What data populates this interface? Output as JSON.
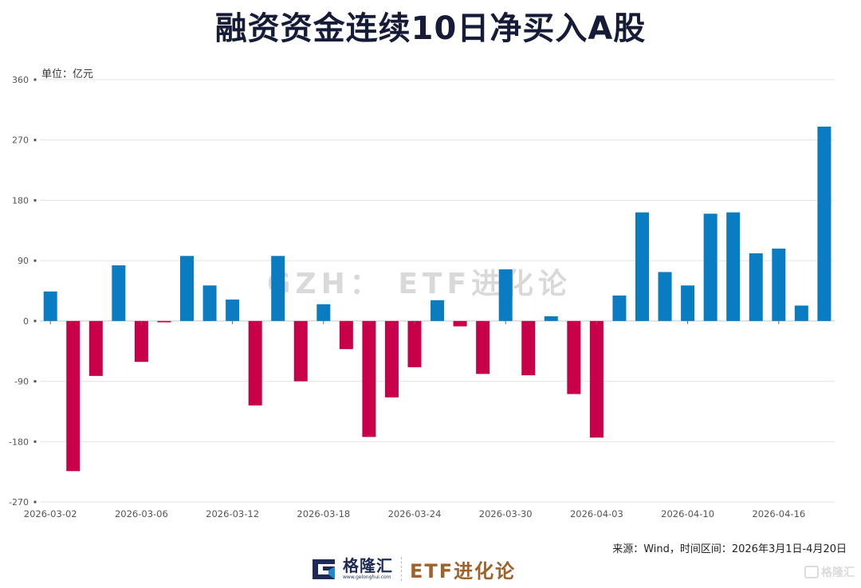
{
  "title": "融资资金连续10日净买入A股",
  "watermark": "GZH： ETF进化论",
  "source": "来源：Wind，时间区间：2026年3月1日-4月20日",
  "footer": {
    "brand_name": "格隆汇",
    "brand_url": "www.gelonghui.com",
    "channel": "ETF进化论",
    "corner_brand": "格隆汇"
  },
  "colors": {
    "positive": "#0A7CC2",
    "negative": "#C8004A",
    "grid": "#e3e3e3",
    "title": "#161b38",
    "channel": "#a0622b"
  },
  "chart_data": {
    "type": "bar",
    "title": "融资资金连续10日净买入A股",
    "unit_label": "单位：亿元",
    "xlabel": "",
    "ylabel": "",
    "ylim": [
      -270,
      360
    ],
    "yticks": [
      360,
      270,
      180,
      90,
      0,
      -90,
      -180,
      -270
    ],
    "grid": true,
    "legend": "none",
    "x_tick_labels": [
      "2026-03-02",
      "2026-03-06",
      "2026-03-12",
      "2026-03-18",
      "2026-03-24",
      "2026-03-30",
      "2026-04-03",
      "2026-04-10",
      "2026-04-16"
    ],
    "categories": [
      "2026-03-02",
      "2026-03-03",
      "2026-03-04",
      "2026-03-05",
      "2026-03-06",
      "2026-03-09",
      "2026-03-10",
      "2026-03-11",
      "2026-03-12",
      "2026-03-13",
      "2026-03-16",
      "2026-03-17",
      "2026-03-18",
      "2026-03-19",
      "2026-03-20",
      "2026-03-23",
      "2026-03-24",
      "2026-03-25",
      "2026-03-26",
      "2026-03-27",
      "2026-03-30",
      "2026-03-31",
      "2026-04-01",
      "2026-04-02",
      "2026-04-03",
      "2026-04-07",
      "2026-04-08",
      "2026-04-09",
      "2026-04-10",
      "2026-04-13",
      "2026-04-14",
      "2026-04-15",
      "2026-04-16",
      "2026-04-17",
      "2026-04-20"
    ],
    "values": [
      44,
      -224,
      -82,
      83,
      -61,
      -2,
      97,
      53,
      32,
      -126,
      97,
      -90,
      25,
      -42,
      -173,
      -114,
      -69,
      31,
      -8,
      -79,
      77,
      -81,
      7,
      -109,
      -174,
      38,
      162,
      73,
      53,
      160,
      162,
      101,
      108,
      23,
      290
    ]
  }
}
